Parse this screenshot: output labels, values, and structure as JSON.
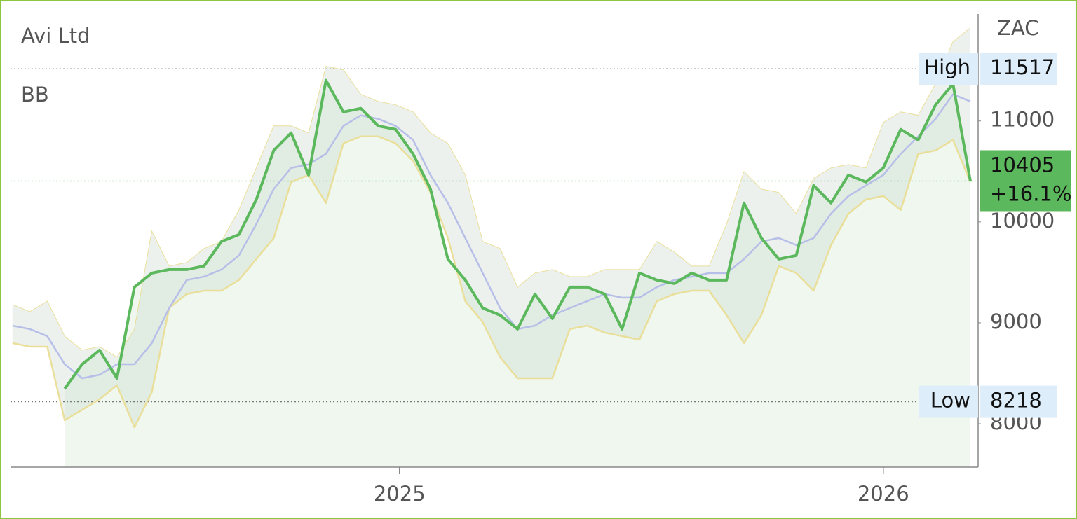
{
  "chart_data": {
    "type": "line",
    "title": "Avi Ltd",
    "indicator": "BB",
    "unit": "ZAC",
    "x": [
      2024.2,
      2024.236,
      2024.272,
      2024.308,
      2024.344,
      2024.38,
      2024.416,
      2024.452,
      2024.488,
      2024.524,
      2024.56,
      2024.596,
      2024.632,
      2024.668,
      2024.704,
      2024.74,
      2024.776,
      2024.812,
      2024.848,
      2024.884,
      2024.92,
      2024.956,
      2024.992,
      2025.028,
      2025.064,
      2025.1,
      2025.136,
      2025.172,
      2025.208,
      2025.244,
      2025.28,
      2025.316,
      2025.352,
      2025.388,
      2025.424,
      2025.46,
      2025.496,
      2025.532,
      2025.568,
      2025.604,
      2025.64,
      2025.676,
      2025.712,
      2025.748,
      2025.784,
      2025.82,
      2025.856,
      2025.892,
      2025.928,
      2025.964,
      2026.0,
      2026.036,
      2026.072,
      2026.108,
      2026.144,
      2026.18
    ],
    "series": [
      {
        "color": "#b7bfe8",
        "values": [
          8972,
          8938,
          8868,
          8590,
          8451,
          8486,
          8590,
          8590,
          8799,
          9146,
          9424,
          9458,
          9528,
          9667,
          9979,
          10326,
          10535,
          10569,
          10674,
          10951,
          11056,
          11021,
          10951,
          10812,
          10465,
          10188,
          9840,
          9493,
          9146,
          8938,
          8972,
          9076,
          9146,
          9215,
          9285,
          9250,
          9250,
          9354,
          9424,
          9458,
          9493,
          9493,
          9632,
          9806,
          9840,
          9771,
          9840,
          10083,
          10257,
          10361,
          10465,
          10674,
          10847,
          11021,
          11264,
          11194
        ]
      },
      {
        "color": "#eadf9a",
        "values": [
          9181,
          9111,
          9215,
          8868,
          8729,
          8764,
          8660,
          8938,
          9910,
          9563,
          9597,
          9736,
          9806,
          10118,
          10535,
          10951,
          10951,
          10882,
          11542,
          11507,
          11264,
          11194,
          11160,
          11090,
          10882,
          10778,
          10465,
          9806,
          9736,
          9354,
          9493,
          9528,
          9458,
          9458,
          9528,
          9528,
          9528,
          9806,
          9701,
          9563,
          9563,
          9979,
          10500,
          10326,
          10292,
          10083,
          10431,
          10535,
          10569,
          10535,
          10986,
          11090,
          11056,
          11368,
          11785,
          11924
        ]
      },
      {
        "color": "#eadf9a",
        "values": [
          8799,
          8764,
          8764,
          8035,
          8139,
          8243,
          8382,
          7965,
          8313,
          9146,
          9285,
          9319,
          9319,
          9424,
          9632,
          9840,
          10396,
          10465,
          10188,
          10778,
          10847,
          10847,
          10778,
          10604,
          10292,
          9840,
          9215,
          9007,
          8660,
          8451,
          8451,
          8451,
          8938,
          8972,
          8903,
          8868,
          8833,
          9215,
          9285,
          9319,
          9319,
          9076,
          8799,
          9076,
          9563,
          9493,
          9319,
          9771,
          10083,
          10222,
          10257,
          10118,
          10674,
          10708,
          10812,
          10396
        ]
      },
      {
        "color": "#5cb85c",
        "values": [
          null,
          null,
          null,
          8347,
          8590,
          8729,
          8451,
          9354,
          9493,
          9528,
          9528,
          9563,
          9806,
          9875,
          10222,
          10708,
          10882,
          10465,
          11403,
          11090,
          11125,
          10951,
          10917,
          10674,
          10326,
          9632,
          9424,
          9146,
          9076,
          8938,
          9285,
          9042,
          9354,
          9354,
          9285,
          8938,
          9493,
          9424,
          9389,
          9493,
          9424,
          9424,
          10188,
          9840,
          9632,
          9667,
          10361,
          10188,
          10465,
          10396,
          10535,
          10917,
          10812,
          11160,
          11368,
          10405
        ]
      }
    ],
    "annotations": [
      {
        "label": "High",
        "value": 11517
      },
      {
        "label": "Low",
        "value": 8218
      }
    ],
    "last": {
      "value": 10405,
      "change": "+16.1%"
    },
    "xlim": [
      2024.196,
      2026.196
    ],
    "xticks": [
      2025,
      2026
    ],
    "ylim": [
      7570,
      12060
    ],
    "yticks": [
      8000,
      9000,
      10000,
      11000
    ]
  }
}
